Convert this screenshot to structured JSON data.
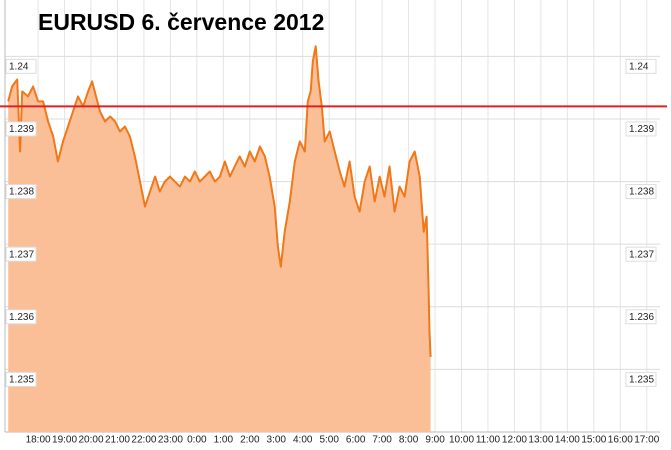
{
  "chart_data": {
    "type": "area",
    "title": "EURUSD 6. července 2012",
    "x": [
      -1.13,
      -0.98,
      -0.79,
      -0.68,
      -0.6,
      -0.38,
      -0.19,
      0,
      0.19,
      0.38,
      0.57,
      0.75,
      0.94,
      1.13,
      1.32,
      1.51,
      1.7,
      1.89,
      2.04,
      2.19,
      2.34,
      2.53,
      2.72,
      2.91,
      3.09,
      3.28,
      3.47,
      3.66,
      3.85,
      4.04,
      4.23,
      4.42,
      4.6,
      4.79,
      4.98,
      5.17,
      5.36,
      5.55,
      5.74,
      5.92,
      6.11,
      6.3,
      6.49,
      6.68,
      6.87,
      7.06,
      7.25,
      7.43,
      7.62,
      7.81,
      8,
      8.19,
      8.38,
      8.57,
      8.75,
      8.94,
      9.06,
      9.17,
      9.32,
      9.51,
      9.7,
      9.89,
      10.08,
      10.19,
      10.3,
      10.38,
      10.49,
      10.6,
      10.72,
      10.83,
      11.02,
      11.21,
      11.4,
      11.58,
      11.77,
      11.96,
      12.15,
      12.34,
      12.53,
      12.72,
      12.91,
      13.09,
      13.28,
      13.47,
      13.66,
      13.85,
      14.04,
      14.23,
      14.42,
      14.57,
      14.68,
      14.75,
      14.79,
      14.83
    ],
    "values": [
      1.23928,
      1.23952,
      1.23963,
      1.23848,
      1.23944,
      1.23936,
      1.23952,
      1.23928,
      1.23928,
      1.23896,
      1.23872,
      1.23832,
      1.23864,
      1.23888,
      1.23912,
      1.23936,
      1.2392,
      1.23944,
      1.2396,
      1.23936,
      1.23912,
      1.23896,
      1.23904,
      1.23896,
      1.2388,
      1.23888,
      1.23872,
      1.2384,
      1.238,
      1.2376,
      1.23784,
      1.23808,
      1.23784,
      1.238,
      1.23808,
      1.238,
      1.23792,
      1.23808,
      1.238,
      1.23816,
      1.238,
      1.23808,
      1.23816,
      1.238,
      1.23808,
      1.23832,
      1.23808,
      1.23824,
      1.2384,
      1.23824,
      1.23848,
      1.23832,
      1.23856,
      1.2384,
      1.23808,
      1.2376,
      1.23696,
      1.23664,
      1.2372,
      1.23768,
      1.23832,
      1.23864,
      1.23848,
      1.23928,
      1.23944,
      1.23992,
      1.24016,
      1.2396,
      1.2392,
      1.23864,
      1.2388,
      1.23848,
      1.23816,
      1.23792,
      1.23832,
      1.23776,
      1.23752,
      1.238,
      1.23824,
      1.23768,
      1.23808,
      1.23776,
      1.23824,
      1.23752,
      1.23792,
      1.23776,
      1.23832,
      1.23848,
      1.23808,
      1.2372,
      1.23744,
      1.2364,
      1.2356,
      1.2352
    ],
    "color": "#f07818",
    "fill": "#fbbf98",
    "reference_line": {
      "value": 1.2392,
      "color": "#e02020"
    },
    "xlim": [
      -1.25,
      23.5
    ],
    "xticks": [
      {
        "value": 0,
        "label": "18:00"
      },
      {
        "value": 1,
        "label": "19:00"
      },
      {
        "value": 2,
        "label": "20:00"
      },
      {
        "value": 3,
        "label": "21:00"
      },
      {
        "value": 4,
        "label": "22:00"
      },
      {
        "value": 5,
        "label": "23:00"
      },
      {
        "value": 6,
        "label": "0:00"
      },
      {
        "value": 7,
        "label": "1:00"
      },
      {
        "value": 8,
        "label": "2:00"
      },
      {
        "value": 9,
        "label": "3:00"
      },
      {
        "value": 10,
        "label": "4:00"
      },
      {
        "value": 11,
        "label": "5:00"
      },
      {
        "value": 12,
        "label": "6:00"
      },
      {
        "value": 13,
        "label": "7:00"
      },
      {
        "value": 14,
        "label": "8:00"
      },
      {
        "value": 15,
        "label": "9:00"
      },
      {
        "value": 16,
        "label": "10:00"
      },
      {
        "value": 17,
        "label": "11:00"
      },
      {
        "value": 18,
        "label": "12:00"
      },
      {
        "value": 19,
        "label": "13:00"
      },
      {
        "value": 20,
        "label": "14:00"
      },
      {
        "value": 21,
        "label": "15:00"
      },
      {
        "value": 22,
        "label": "16:00"
      },
      {
        "value": 23,
        "label": "17:00"
      }
    ],
    "ylim": [
      1.234,
      1.2409
    ],
    "yticks": [
      1.235,
      1.236,
      1.237,
      1.238,
      1.239,
      1.24
    ],
    "grid": true
  }
}
